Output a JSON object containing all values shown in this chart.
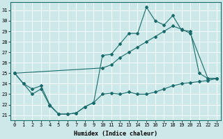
{
  "xlabel": "Humidex (Indice chaleur)",
  "bg_color": "#cce8e8",
  "grid_color": "#ffffff",
  "line_color": "#1a6b6b",
  "xlim": [
    -0.5,
    23.5
  ],
  "ylim": [
    20.5,
    31.8
  ],
  "yticks": [
    21,
    22,
    23,
    24,
    25,
    26,
    27,
    28,
    29,
    30,
    31
  ],
  "xticks": [
    0,
    1,
    2,
    3,
    4,
    5,
    6,
    7,
    8,
    9,
    10,
    11,
    12,
    13,
    14,
    15,
    16,
    17,
    18,
    19,
    20,
    21,
    22,
    23
  ],
  "series": [
    {
      "x": [
        0,
        1,
        2,
        3,
        4,
        5,
        6,
        7,
        8,
        9,
        10,
        11,
        12,
        13,
        14,
        15,
        16,
        17,
        18,
        19,
        20,
        21,
        22,
        23
      ],
      "y": [
        25.0,
        24.0,
        23.5,
        23.8,
        22.0,
        21.1,
        21.1,
        21.2,
        21.8,
        22.2,
        26.7,
        26.8,
        27.8,
        28.8,
        28.8,
        31.3,
        30.0,
        29.6,
        30.5,
        29.1,
        29.0,
        25.0,
        24.5,
        24.5
      ]
    },
    {
      "x": [
        0,
        10,
        11,
        12,
        13,
        14,
        15,
        16,
        17,
        18,
        19,
        20,
        22,
        23
      ],
      "y": [
        25.0,
        25.5,
        25.8,
        26.5,
        27.0,
        27.5,
        28.0,
        28.5,
        29.0,
        29.5,
        29.2,
        28.8,
        24.5,
        24.5
      ]
    },
    {
      "x": [
        0,
        1,
        2,
        3,
        4,
        5,
        6,
        7,
        8,
        9,
        10,
        11,
        12,
        13,
        14,
        15,
        16,
        17,
        18,
        19,
        20,
        21,
        22,
        23
      ],
      "y": [
        25.0,
        24.0,
        23.0,
        23.5,
        21.9,
        21.1,
        21.1,
        21.2,
        21.8,
        22.2,
        23.0,
        23.1,
        23.0,
        23.2,
        23.0,
        23.0,
        23.2,
        23.5,
        23.8,
        24.0,
        24.1,
        24.2,
        24.3,
        24.5
      ]
    }
  ]
}
